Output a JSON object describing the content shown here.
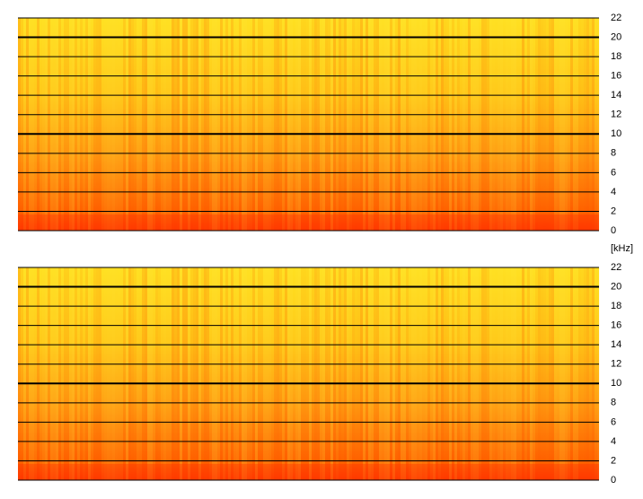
{
  "chart_data": [
    {
      "type": "spectrogram",
      "ylabel": "[kHz]",
      "ylim": [
        0,
        22
      ],
      "yticks": [
        0,
        2,
        4,
        6,
        8,
        10,
        12,
        14,
        16,
        18,
        20,
        22
      ],
      "grid": true
    },
    {
      "type": "spectrogram",
      "ylim": [
        0,
        22
      ],
      "yticks": [
        0,
        2,
        4,
        6,
        8,
        10,
        12,
        14,
        16,
        18,
        20,
        22
      ],
      "grid": true
    }
  ]
}
